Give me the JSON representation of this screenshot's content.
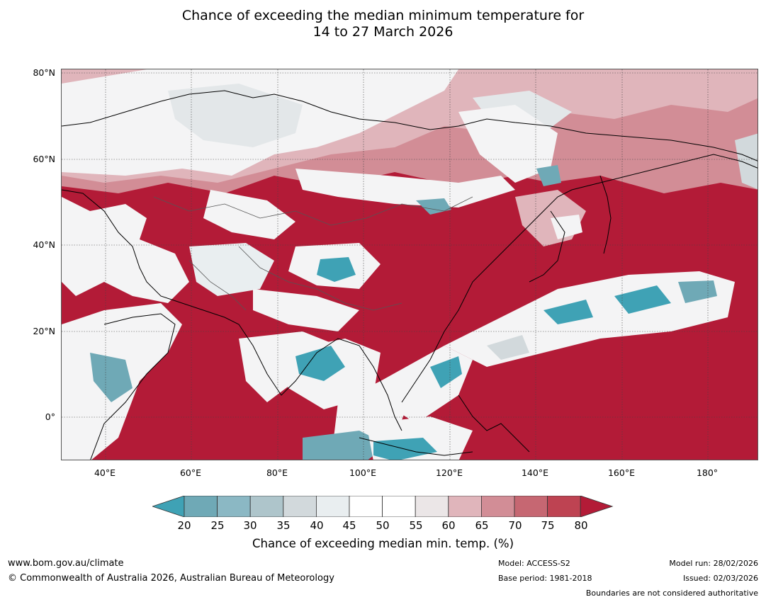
{
  "title": {
    "line1": "Chance of exceeding the median minimum temperature for",
    "line2": "14 to 27 March 2026"
  },
  "map": {
    "lat_labels": [
      "80°N",
      "60°N",
      "40°N",
      "20°N",
      "0°"
    ],
    "lon_labels": [
      "40°E",
      "60°E",
      "80°E",
      "100°E",
      "120°E",
      "140°E",
      "160°E",
      "180°"
    ],
    "lat_range": [
      -10,
      80
    ],
    "lon_range": [
      30,
      192
    ]
  },
  "colorbar": {
    "ticks": [
      "20",
      "25",
      "30",
      "35",
      "40",
      "45",
      "50",
      "55",
      "60",
      "65",
      "70",
      "75",
      "80"
    ],
    "colors": [
      "#3fa2b5",
      "#6fa9b6",
      "#8bb8c4",
      "#aec5cb",
      "#d2d9dc",
      "#e9eef0",
      "#ffffff",
      "#ffffff",
      "#ebe6e7",
      "#e0b5bb",
      "#d28d96",
      "#c66772",
      "#be4352",
      "#b31b37"
    ],
    "label": "Chance of exceeding median min. temp. (%)"
  },
  "footer": {
    "website": "www.bom.gov.au/climate",
    "copyright": "© Commonwealth of Australia 2026, Australian Bureau of Meteorology",
    "model": "Model: ACCESS-S2",
    "base_period": "Base period: 1981-2018",
    "model_run": "Model run: 28/02/2026",
    "issued": "Issued: 02/03/2026",
    "disclaimer": "Boundaries are not considered authoritative"
  }
}
